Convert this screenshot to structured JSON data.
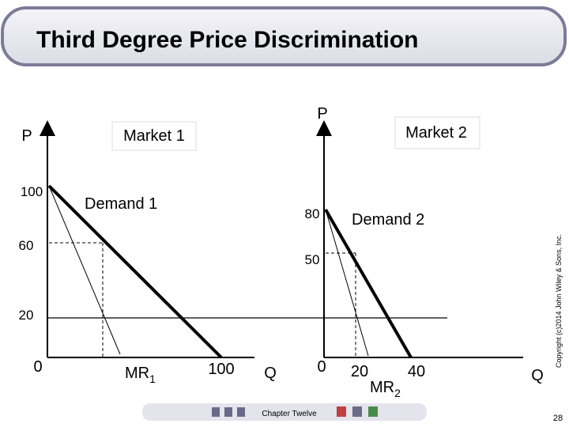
{
  "header": {
    "title": "Third Degree Price Discrimination"
  },
  "market1": {
    "panel_label": "Market 1",
    "p_label": "P",
    "q_label": "Q",
    "y_labels": [
      "100",
      "60",
      "20",
      "0"
    ],
    "x_labels": [
      "100"
    ],
    "demand_label": "Demand 1",
    "mr_label": "MR",
    "mr_subscript": "1"
  },
  "market2": {
    "panel_label": "Market 2",
    "p_label": "P",
    "q_label": "Q",
    "y_labels": [
      "80",
      "50",
      "0"
    ],
    "x_labels": [
      "20",
      "40"
    ],
    "demand_label": "Demand 2",
    "mr_label": "MR",
    "mr_subscript": "2"
  },
  "copyright": "Copyright (c)2014 John Wiley & Sons, Inc.",
  "footer": {
    "chapter": "Chapter Twelve",
    "page": "28"
  }
}
